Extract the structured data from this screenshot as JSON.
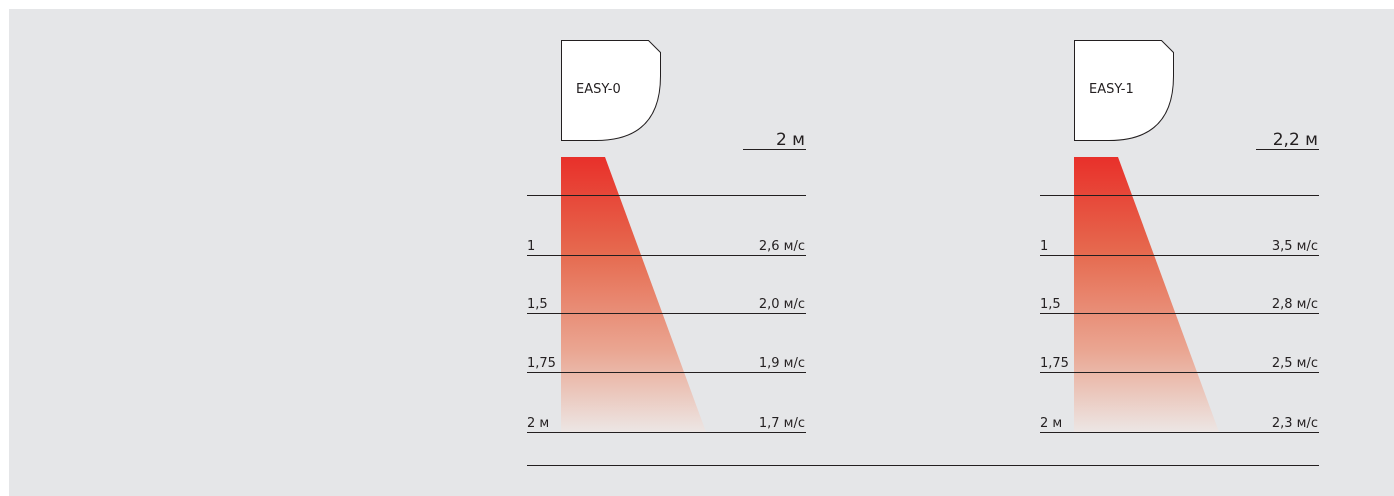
{
  "colors": {
    "background": "#e5e6e8",
    "gradient_top": "#e8302a",
    "gradient_bottom": "#ece6e4",
    "line": "#231f20"
  },
  "units": [
    {
      "name": "EASY-0",
      "height_label": "2 м",
      "rows": [
        {
          "distance": "",
          "speed": ""
        },
        {
          "distance": "1",
          "speed": "2,6 м/с"
        },
        {
          "distance": "1,5",
          "speed": "2,0 м/с"
        },
        {
          "distance": "1,75",
          "speed": "1,9 м/с"
        },
        {
          "distance": "2 м",
          "speed": "1,7 м/с"
        }
      ]
    },
    {
      "name": "EASY-1",
      "height_label": "2,2 м",
      "rows": [
        {
          "distance": "",
          "speed": ""
        },
        {
          "distance": "1",
          "speed": "3,5 м/с"
        },
        {
          "distance": "1,5",
          "speed": "2,8 м/с"
        },
        {
          "distance": "1,75",
          "speed": "2,5 м/с"
        },
        {
          "distance": "2 м",
          "speed": "2,3 м/с"
        }
      ]
    }
  ]
}
